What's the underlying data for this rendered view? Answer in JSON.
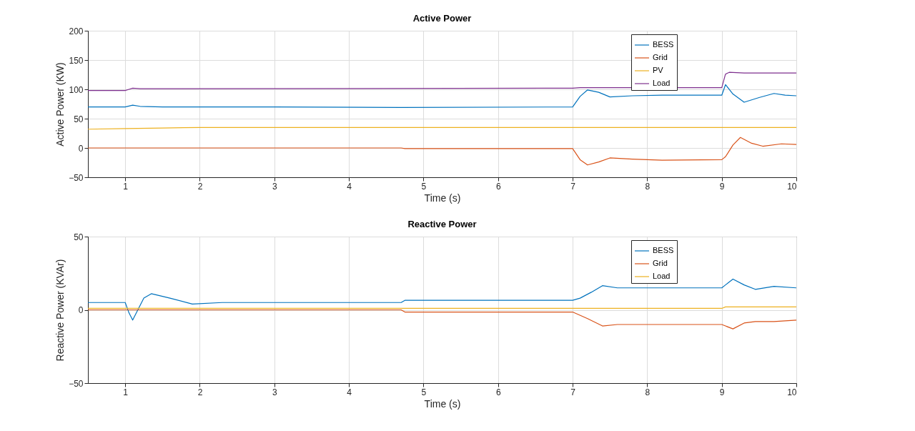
{
  "chart_data": [
    {
      "type": "line",
      "title": "Active Power",
      "xlabel": "Time (s)",
      "ylabel": "Active Power (KW)",
      "xlim": [
        0.5,
        10
      ],
      "xticks": [
        1,
        2,
        3,
        4,
        5,
        6,
        7,
        8,
        9,
        10
      ],
      "ylim": [
        -50,
        200
      ],
      "yticks": [
        -50,
        0,
        50,
        100,
        150,
        200
      ],
      "grid": true,
      "legend": "top right",
      "series": [
        {
          "name": "BESS",
          "color": "#0072bd",
          "x": [
            0.5,
            1.0,
            1.1,
            1.2,
            1.5,
            3,
            4.7,
            7.0,
            7.1,
            7.2,
            7.35,
            7.5,
            7.8,
            8.2,
            9.0,
            9.05,
            9.15,
            9.3,
            9.5,
            9.7,
            9.85,
            10
          ],
          "values": [
            70,
            70,
            73,
            71,
            70,
            70,
            69,
            70,
            88,
            99,
            95,
            87,
            89,
            90,
            90,
            108,
            92,
            78,
            86,
            93,
            90,
            89
          ]
        },
        {
          "name": "Grid",
          "color": "#d95319",
          "x": [
            0.5,
            4.7,
            4.75,
            7.0,
            7.1,
            7.2,
            7.35,
            7.5,
            7.8,
            8.2,
            9.0,
            9.05,
            9.15,
            9.25,
            9.4,
            9.55,
            9.8,
            10
          ],
          "values": [
            0,
            0,
            -1,
            -1,
            -20,
            -29,
            -24,
            -17,
            -19,
            -21,
            -20,
            -15,
            5,
            18,
            8,
            3,
            7,
            6
          ]
        },
        {
          "name": "PV",
          "color": "#edb120",
          "x": [
            0.5,
            1.0,
            1.5,
            2.0,
            2.5,
            10
          ],
          "values": [
            32,
            33,
            34,
            35,
            35,
            35
          ]
        },
        {
          "name": "Load",
          "color": "#7e2f8e",
          "x": [
            0.5,
            1.0,
            1.05,
            1.1,
            1.2,
            1.5,
            7.0,
            7.1,
            9.0,
            9.05,
            9.1,
            9.3,
            10
          ],
          "values": [
            98,
            98,
            100,
            102,
            101,
            101,
            102,
            103,
            103,
            126,
            129,
            128,
            128
          ]
        }
      ]
    },
    {
      "type": "line",
      "title": "Reactive Power",
      "xlabel": "Time (s)",
      "ylabel": "Reactive Power (KVAr)",
      "xlim": [
        0.5,
        10
      ],
      "xticks": [
        1,
        2,
        3,
        4,
        5,
        6,
        7,
        8,
        9,
        10
      ],
      "ylim": [
        -50,
        50
      ],
      "yticks": [
        -50,
        0,
        50
      ],
      "grid": true,
      "legend": "top right",
      "series": [
        {
          "name": "BESS",
          "color": "#0072bd",
          "x": [
            0.5,
            1.0,
            1.05,
            1.1,
            1.15,
            1.25,
            1.35,
            1.6,
            1.9,
            2.3,
            3,
            4.7,
            4.75,
            7.0,
            7.1,
            7.25,
            7.4,
            7.6,
            7.8,
            9.0,
            9.05,
            9.15,
            9.3,
            9.45,
            9.7,
            10
          ],
          "values": [
            5,
            5,
            -2,
            -7,
            -2,
            8,
            11,
            8,
            4,
            5,
            5,
            5,
            6.5,
            6.5,
            8,
            12,
            16.5,
            15,
            15,
            15,
            17,
            21,
            17,
            14,
            16,
            15
          ]
        },
        {
          "name": "Grid",
          "color": "#d95319",
          "x": [
            0.5,
            4.7,
            4.75,
            7.0,
            7.2,
            7.4,
            7.6,
            7.8,
            9.0,
            9.05,
            9.15,
            9.3,
            9.45,
            9.7,
            10
          ],
          "values": [
            0,
            0,
            -1.5,
            -1.5,
            -6,
            -11,
            -10,
            -10,
            -10,
            -11,
            -13,
            -9,
            -8,
            -8,
            -7
          ]
        },
        {
          "name": "Load",
          "color": "#edb120",
          "x": [
            0.5,
            9.0,
            9.05,
            10
          ],
          "values": [
            1,
            1,
            2,
            2
          ]
        }
      ]
    }
  ]
}
